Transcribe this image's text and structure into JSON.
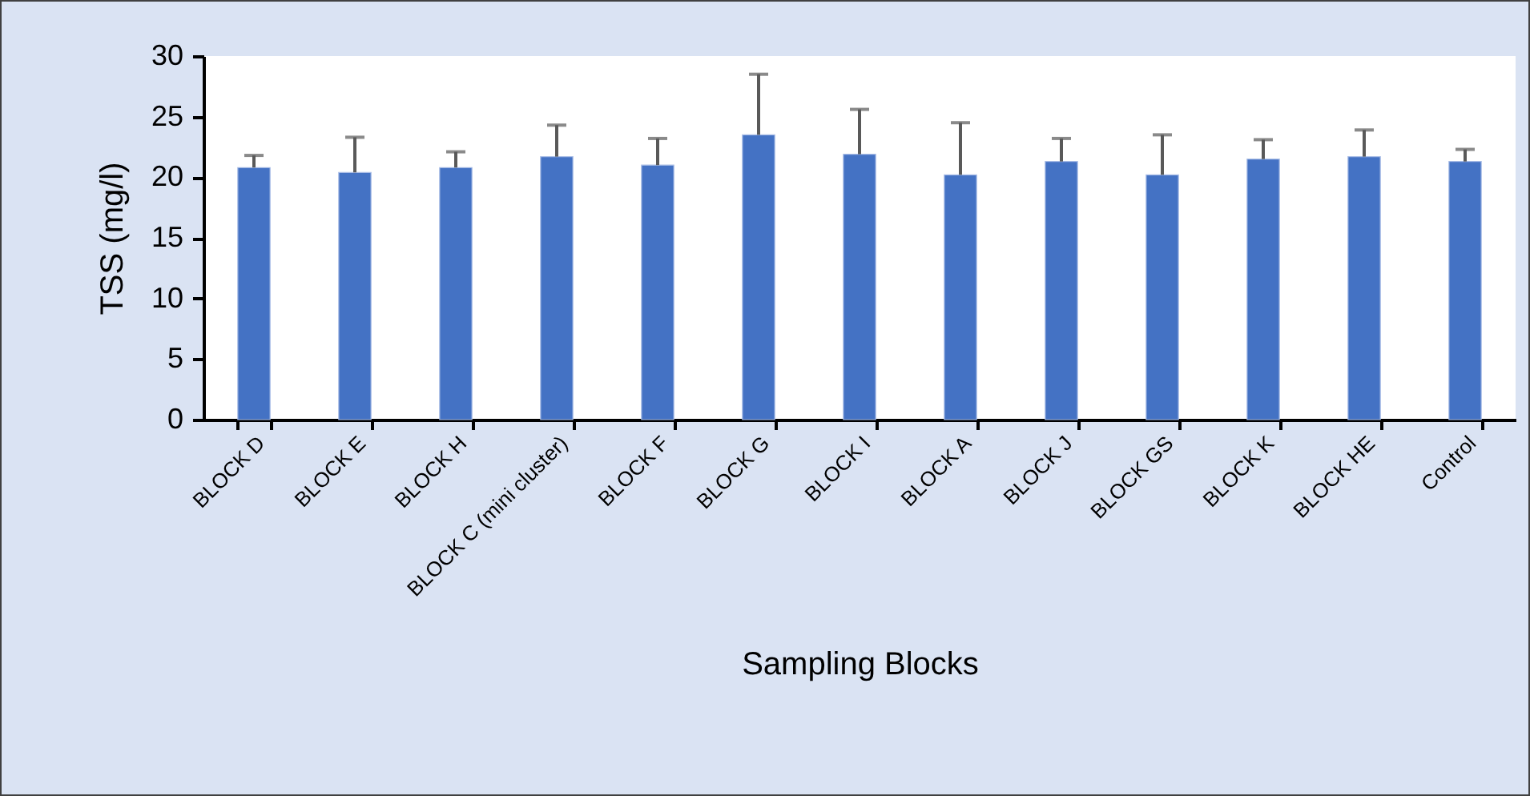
{
  "chart_data": {
    "type": "bar",
    "xlabel": "Sampling Blocks",
    "ylabel": "TSS (mg/l)",
    "categories": [
      "BLOCK D",
      "BLOCK E",
      "BLOCK H",
      "BLOCK C (mini cluster)",
      "BLOCK F",
      "BLOCK G",
      "BLOCK I",
      "BLOCK A",
      "BLOCK J",
      "BLOCK GS",
      "BLOCK K",
      "BLOCK HE",
      "Control"
    ],
    "values": [
      20.8,
      20.4,
      20.8,
      21.7,
      21.0,
      23.5,
      21.9,
      20.2,
      21.3,
      20.2,
      21.5,
      21.7,
      21.3
    ],
    "errors": [
      [
        20.8,
        21.8
      ],
      [
        20.4,
        23.3
      ],
      [
        20.8,
        22.1
      ],
      [
        21.7,
        24.3
      ],
      [
        21.0,
        23.2
      ],
      [
        23.5,
        28.5
      ],
      [
        21.9,
        25.6
      ],
      [
        20.2,
        24.5
      ],
      [
        21.3,
        23.2
      ],
      [
        20.2,
        23.5
      ],
      [
        21.5,
        23.1
      ],
      [
        21.7,
        23.9
      ],
      [
        21.3,
        22.3
      ]
    ],
    "color": "#4472c4",
    "ylim": [
      0,
      30
    ],
    "yticks": [
      0,
      5,
      10,
      15,
      20,
      25,
      30
    ],
    "grid": false
  }
}
